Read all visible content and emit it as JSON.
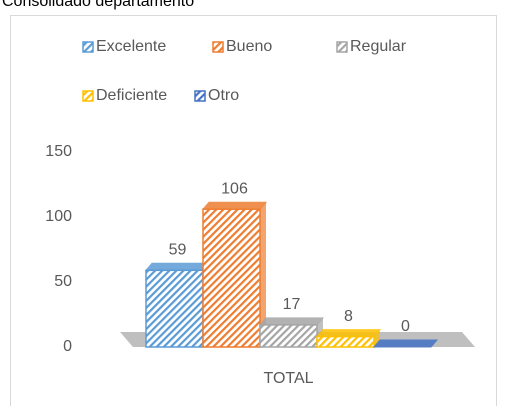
{
  "chart_data": {
    "type": "bar3d",
    "title": "Consolidado departamento",
    "categories": [
      "TOTAL"
    ],
    "series": [
      {
        "name": "Excelente",
        "color": "#5b9bd5",
        "values": [
          59
        ]
      },
      {
        "name": "Bueno",
        "color": "#ed7d31",
        "values": [
          106
        ]
      },
      {
        "name": "Regular",
        "color": "#a5a5a5",
        "values": [
          17
        ]
      },
      {
        "name": "Deficiente",
        "color": "#ffc000",
        "values": [
          8
        ]
      },
      {
        "name": "Otro",
        "color": "#4472c4",
        "values": [
          0
        ]
      }
    ],
    "ylim": [
      0,
      150
    ],
    "yticks": [
      0,
      50,
      100,
      150
    ],
    "grid": false,
    "legend": "top"
  }
}
